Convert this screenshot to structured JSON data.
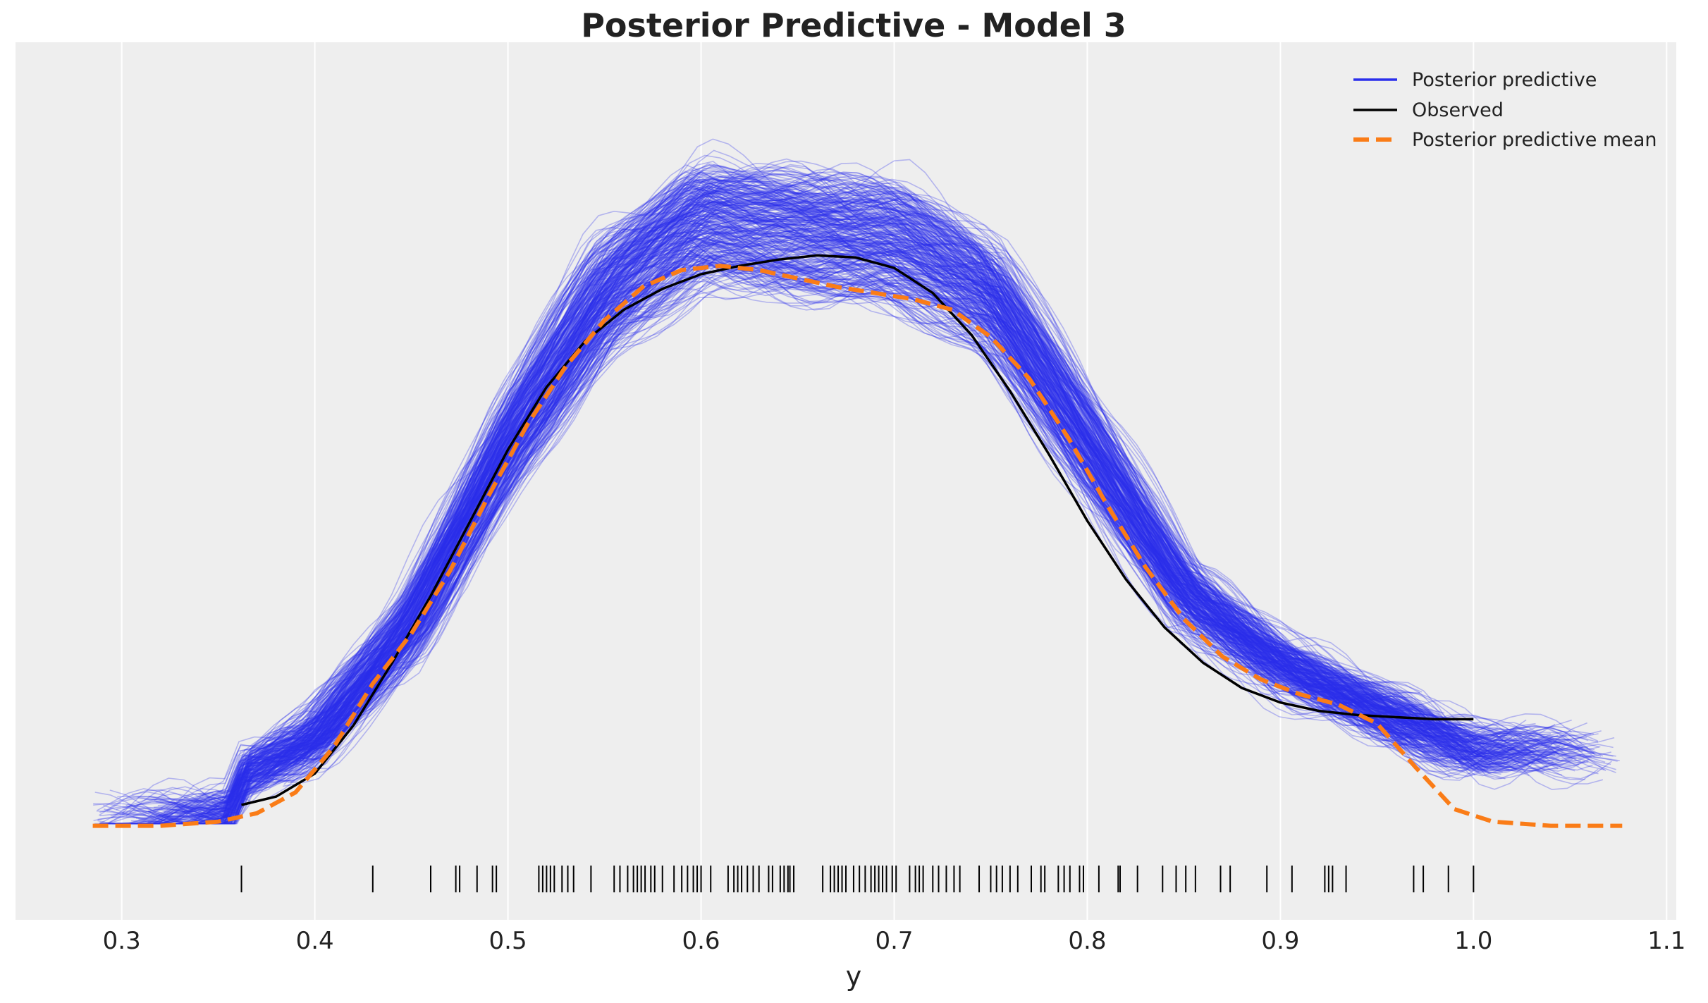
{
  "chart_data": {
    "type": "line",
    "title": "Posterior Predictive - Model 3",
    "xlabel": "y",
    "ylabel": "",
    "xlim": [
      0.245,
      1.105
    ],
    "ylim": [
      -0.45,
      3.75
    ],
    "x_ticks": [
      0.3,
      0.4,
      0.5,
      0.6,
      0.7,
      0.8,
      0.9,
      1.0,
      1.1
    ],
    "x_tick_labels": [
      "0.3",
      "0.4",
      "0.5",
      "0.6",
      "0.7",
      "0.8",
      "0.9",
      "1.0",
      "1.1"
    ],
    "grid": true,
    "legend_position": "top-right",
    "colors": {
      "posterior_predictive": "#2a2eec",
      "observed": "#000000",
      "posterior_predictive_mean": "#fa7c17",
      "background": "#eeeeee",
      "grid": "#ffffff"
    },
    "series": [
      {
        "name": "Posterior predictive",
        "style": "thin translucent lines (many draws)",
        "x": [
          0.36,
          0.4,
          0.45,
          0.5,
          0.55,
          0.6,
          0.65,
          0.7,
          0.75,
          0.8,
          0.85,
          0.9,
          0.95,
          1.0
        ],
        "y": [
          0.22,
          0.4,
          0.95,
          1.8,
          2.5,
          2.85,
          2.8,
          2.75,
          2.5,
          1.8,
          1.1,
          0.75,
          0.55,
          0.35
        ]
      },
      {
        "name": "Observed",
        "style": "solid black line",
        "x": [
          0.362,
          0.38,
          0.4,
          0.42,
          0.44,
          0.46,
          0.48,
          0.5,
          0.52,
          0.54,
          0.56,
          0.58,
          0.6,
          0.62,
          0.64,
          0.66,
          0.68,
          0.7,
          0.72,
          0.74,
          0.76,
          0.78,
          0.8,
          0.82,
          0.84,
          0.86,
          0.88,
          0.9,
          0.92,
          0.94,
          0.96,
          0.98,
          1.0
        ],
        "y": [
          0.1,
          0.14,
          0.25,
          0.48,
          0.78,
          1.1,
          1.45,
          1.8,
          2.1,
          2.32,
          2.47,
          2.57,
          2.64,
          2.68,
          2.71,
          2.73,
          2.72,
          2.67,
          2.55,
          2.35,
          2.08,
          1.78,
          1.46,
          1.18,
          0.95,
          0.78,
          0.66,
          0.59,
          0.55,
          0.53,
          0.52,
          0.51,
          0.51
        ]
      },
      {
        "name": "Posterior predictive mean",
        "style": "dashed orange line",
        "x": [
          0.285,
          0.32,
          0.35,
          0.37,
          0.39,
          0.41,
          0.43,
          0.45,
          0.47,
          0.49,
          0.51,
          0.53,
          0.55,
          0.57,
          0.59,
          0.61,
          0.63,
          0.65,
          0.67,
          0.69,
          0.71,
          0.73,
          0.75,
          0.77,
          0.79,
          0.81,
          0.83,
          0.85,
          0.87,
          0.89,
          0.91,
          0.93,
          0.95,
          0.97,
          0.99,
          1.01,
          1.04,
          1.077
        ],
        "y": [
          0.0,
          0.0,
          0.02,
          0.06,
          0.16,
          0.38,
          0.68,
          0.92,
          1.22,
          1.58,
          1.92,
          2.2,
          2.42,
          2.58,
          2.66,
          2.68,
          2.66,
          2.62,
          2.58,
          2.55,
          2.52,
          2.47,
          2.34,
          2.14,
          1.86,
          1.54,
          1.24,
          0.99,
          0.81,
          0.7,
          0.63,
          0.58,
          0.49,
          0.28,
          0.08,
          0.02,
          0.0,
          0.0
        ]
      }
    ],
    "rug": [
      0.362,
      0.43,
      0.46,
      0.473,
      0.475,
      0.484,
      0.492,
      0.494,
      0.516,
      0.518,
      0.52,
      0.522,
      0.524,
      0.528,
      0.531,
      0.534,
      0.543,
      0.555,
      0.558,
      0.562,
      0.565,
      0.567,
      0.569,
      0.571,
      0.574,
      0.576,
      0.58,
      0.586,
      0.59,
      0.593,
      0.596,
      0.598,
      0.6,
      0.605,
      0.614,
      0.617,
      0.619,
      0.621,
      0.624,
      0.627,
      0.63,
      0.635,
      0.637,
      0.641,
      0.643,
      0.645,
      0.646,
      0.648,
      0.663,
      0.667,
      0.669,
      0.671,
      0.673,
      0.675,
      0.679,
      0.682,
      0.685,
      0.688,
      0.69,
      0.692,
      0.694,
      0.696,
      0.699,
      0.701,
      0.708,
      0.711,
      0.713,
      0.715,
      0.72,
      0.723,
      0.727,
      0.731,
      0.734,
      0.744,
      0.75,
      0.753,
      0.756,
      0.76,
      0.764,
      0.771,
      0.776,
      0.778,
      0.785,
      0.788,
      0.791,
      0.796,
      0.798,
      0.806,
      0.816,
      0.817,
      0.826,
      0.839,
      0.846,
      0.851,
      0.856,
      0.869,
      0.874,
      0.893,
      0.906,
      0.923,
      0.925,
      0.927,
      0.934,
      0.969,
      0.974,
      0.987,
      1.0
    ],
    "legend": [
      {
        "label": "Posterior predictive",
        "style": "solid",
        "color": "#2a2eec"
      },
      {
        "label": "Observed",
        "style": "solid",
        "color": "#000000"
      },
      {
        "label": "Posterior predictive mean",
        "style": "dashed",
        "color": "#fa7c17"
      }
    ]
  }
}
